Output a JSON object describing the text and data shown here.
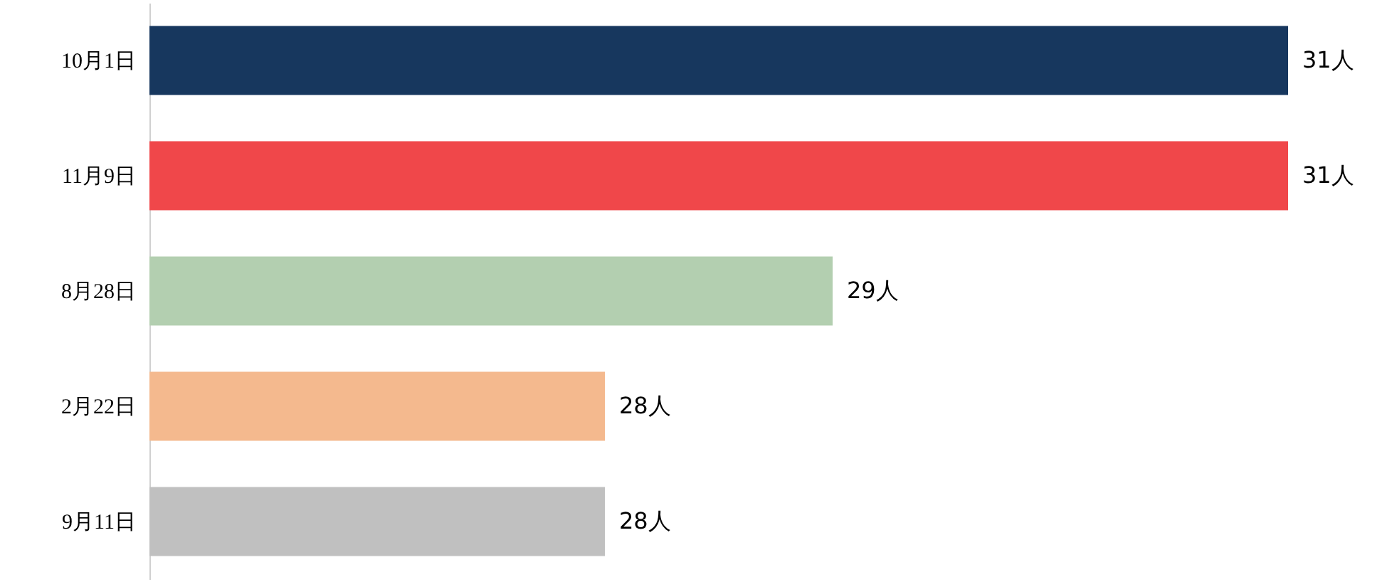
{
  "chart_data": {
    "type": "bar",
    "orientation": "horizontal",
    "categories": [
      "10月1日",
      "11月9日",
      "8月28日",
      "2月22日",
      "9月11日"
    ],
    "values": [
      31,
      31,
      29,
      28,
      28
    ],
    "value_labels": [
      "31人",
      "31人",
      "29人",
      "28人",
      "28人"
    ],
    "colors": [
      "#17375e",
      "#f0474a",
      "#b3cfb0",
      "#f4b98e",
      "#c0c0c0"
    ],
    "xlim": [
      26,
      31
    ],
    "tick_labels": "y"
  }
}
